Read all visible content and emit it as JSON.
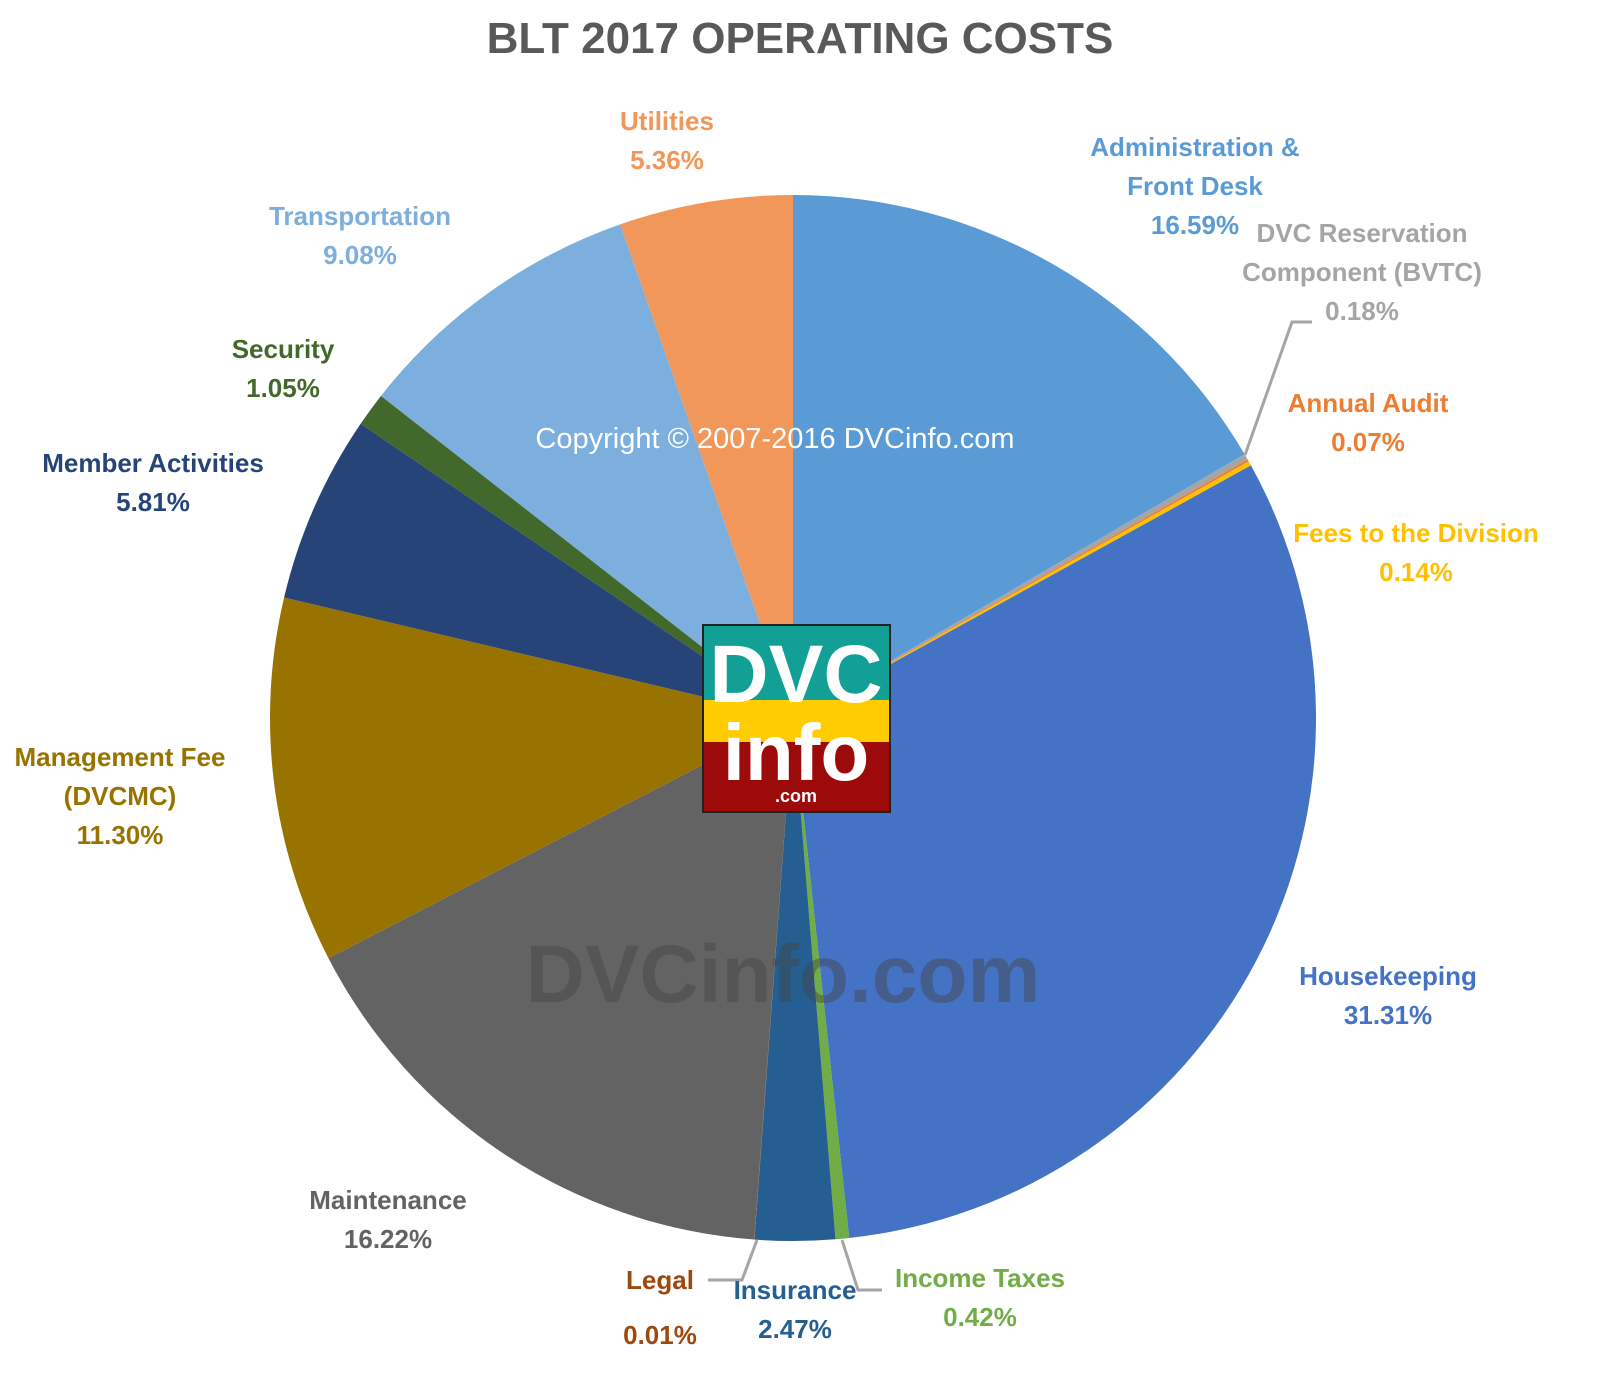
{
  "chart_data": {
    "type": "pie",
    "title": "BLT 2017 OPERATING COSTS",
    "categories": [
      "Administration & Front Desk",
      "DVC Reservation Component (BVTC)",
      "Annual Audit",
      "Fees to the Division",
      "Housekeeping",
      "Income Taxes",
      "Insurance",
      "Legal",
      "Maintenance",
      "Management Fee (DVCMC)",
      "Member Activities",
      "Security",
      "Transportation",
      "Utilities"
    ],
    "values": [
      16.59,
      0.18,
      0.07,
      0.14,
      31.31,
      0.42,
      2.47,
      0.01,
      16.22,
      11.3,
      5.81,
      1.05,
      9.08,
      5.36
    ],
    "value_labels": [
      "16.59%",
      "0.18%",
      "0.07%",
      "0.14%",
      "31.31%",
      "0.42%",
      "2.47%",
      "0.01%",
      "16.22%",
      "11.30%",
      "5.81%",
      "1.05%",
      "9.08%",
      "5.36%"
    ],
    "colors": [
      "#5b9bd5",
      "#a5a5a5",
      "#ed7d31",
      "#ffc000",
      "#4472c4",
      "#70ad47",
      "#255e91",
      "#9e480e",
      "#636363",
      "#997300",
      "#264478",
      "#43682b",
      "#7cafdd",
      "#f1975a"
    ],
    "copyright": "Copyright © 2007-2016 DVCinfo.com",
    "watermark": "DVCinfo.com",
    "logo": {
      "top": "DVC",
      "middle": "info",
      "bottom": ".com"
    }
  }
}
